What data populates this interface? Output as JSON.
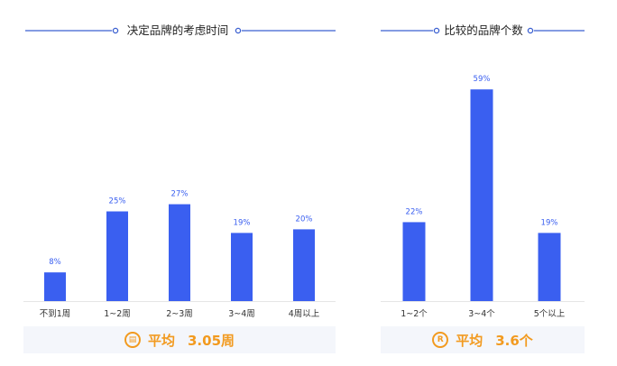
{
  "colors": {
    "bar": "#3a5ff0",
    "label": "#3a5ff0",
    "accent": "#f29a1f",
    "line": "#3a5fd0"
  },
  "left": {
    "title": "决定品牌的考虑时间",
    "footer": {
      "icon": "calendar-icon",
      "label": "平均",
      "value": "3.05周"
    }
  },
  "right": {
    "title": "比较的品牌个数",
    "footer": {
      "icon": "registered-mark-icon",
      "label": "平均",
      "value": "3.6个"
    }
  },
  "chart_data": [
    {
      "type": "bar",
      "title": "决定品牌的考虑时间",
      "categories": [
        "不到1周",
        "1~2周",
        "2~3周",
        "3~4周",
        "4周以上"
      ],
      "values": [
        8,
        25,
        27,
        19,
        20
      ],
      "value_labels": [
        "8%",
        "25%",
        "27%",
        "19%",
        "20%"
      ],
      "unit": "%"
    },
    {
      "type": "bar",
      "title": "比较的品牌个数",
      "categories": [
        "1~2个",
        "3~4个",
        "5个以上"
      ],
      "values": [
        22,
        59,
        19
      ],
      "value_labels": [
        "22%",
        "59%",
        "19%"
      ],
      "unit": "%"
    }
  ]
}
